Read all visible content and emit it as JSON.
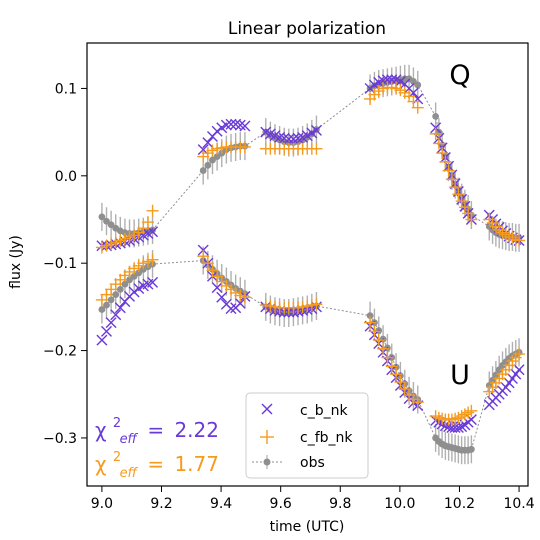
{
  "chart_data": {
    "type": "scatter",
    "title": "Linear polarization",
    "xlabel": "time (UTC)",
    "ylabel": "flux (Jy)",
    "xlim": [
      8.95,
      10.43
    ],
    "ylim": [
      -0.355,
      0.152
    ],
    "x_ticks": [
      "9.0",
      "9.2",
      "9.4",
      "9.6",
      "9.8",
      "10.0",
      "10.2",
      "10.4"
    ],
    "y_ticks": [
      "0.1",
      "0.0",
      "−0.1",
      "−0.2",
      "−0.3"
    ],
    "x_tick_values": [
      9.0,
      9.2,
      9.4,
      9.6,
      9.8,
      10.0,
      10.2,
      10.4
    ],
    "y_tick_values": [
      0.1,
      0.0,
      -0.1,
      -0.2,
      -0.3
    ],
    "grid": false,
    "legend": {
      "position": "bottom-center",
      "entries": [
        "c_b_nk",
        "c_fb_nk",
        "obs"
      ]
    },
    "annotations": {
      "Q_label": "Q",
      "U_label": "U",
      "chi_purple": "2.22",
      "chi_orange": "1.77",
      "chi_symbol": "χ",
      "chi_sup": "2",
      "chi_sub": "eff",
      "chi_eq": "="
    },
    "colors": {
      "c_b_nk": "#6a3ad6",
      "c_fb_nk": "#f59b1e",
      "obs": "#8f8f8f",
      "errorbar": "#b0b0b0"
    },
    "segments": [
      {
        "t_start": 9.0,
        "t_end": 9.17,
        "n": 12
      },
      {
        "t_start": 9.34,
        "t_end": 9.48,
        "n": 10
      },
      {
        "t_start": 9.55,
        "t_end": 9.72,
        "n": 12
      },
      {
        "t_start": 9.9,
        "t_end": 10.06,
        "n": 12
      },
      {
        "t_start": 10.12,
        "t_end": 10.24,
        "n": 12
      },
      {
        "t_start": 10.3,
        "t_end": 10.4,
        "n": 10
      }
    ],
    "series": [
      {
        "name": "obs",
        "label": "Q",
        "values": [
          [
            -0.047,
            -0.052,
            -0.056,
            -0.06,
            -0.063,
            -0.065,
            -0.066,
            -0.066,
            -0.065,
            -0.064,
            -0.063,
            -0.062
          ],
          [
            0.006,
            0.012,
            0.018,
            0.022,
            0.026,
            0.03,
            0.032,
            0.033,
            0.034,
            0.034
          ],
          [
            0.05,
            0.046,
            0.043,
            0.041,
            0.039,
            0.038,
            0.038,
            0.039,
            0.041,
            0.044,
            0.048,
            0.053
          ],
          [
            0.1,
            0.103,
            0.105,
            0.106,
            0.107,
            0.108,
            0.109,
            0.11,
            0.111,
            0.111,
            0.108,
            0.104
          ],
          [
            0.068,
            0.05,
            0.035,
            0.022,
            0.01,
            0.0,
            -0.01,
            -0.018,
            -0.025,
            -0.032,
            -0.038,
            -0.045
          ],
          [
            -0.058,
            -0.062,
            -0.065,
            -0.067,
            -0.068,
            -0.069,
            -0.07,
            -0.07,
            -0.071,
            -0.071
          ]
        ]
      },
      {
        "name": "c_b_nk",
        "label": "Q",
        "values": [
          [
            -0.08,
            -0.08,
            -0.079,
            -0.078,
            -0.077,
            -0.075,
            -0.074,
            -0.072,
            -0.07,
            -0.068,
            -0.066,
            -0.064
          ],
          [
            0.03,
            0.038,
            0.045,
            0.051,
            0.055,
            0.058,
            0.059,
            0.059,
            0.058,
            0.057
          ],
          [
            0.05,
            0.048,
            0.046,
            0.044,
            0.043,
            0.042,
            0.042,
            0.043,
            0.044,
            0.046,
            0.049,
            0.052
          ],
          [
            0.1,
            0.104,
            0.107,
            0.109,
            0.11,
            0.11,
            0.11,
            0.108,
            0.105,
            0.1,
            0.095,
            0.088
          ],
          [
            0.055,
            0.043,
            0.032,
            0.021,
            0.011,
            0.001,
            -0.009,
            -0.018,
            -0.027,
            -0.035,
            -0.043,
            -0.05
          ],
          [
            -0.045,
            -0.05,
            -0.055,
            -0.059,
            -0.063,
            -0.066,
            -0.069,
            -0.071,
            -0.073,
            -0.074
          ]
        ]
      },
      {
        "name": "c_fb_nk",
        "label": "Q",
        "values": [
          [
            -0.082,
            -0.08,
            -0.078,
            -0.076,
            -0.074,
            -0.072,
            -0.07,
            -0.068,
            -0.065,
            -0.06,
            -0.053,
            -0.04
          ],
          [
            0.022,
            0.026,
            0.029,
            0.031,
            0.032,
            0.033,
            0.033,
            0.033,
            0.033,
            0.033
          ],
          [
            0.031,
            0.031,
            0.031,
            0.031,
            0.031,
            0.031,
            0.031,
            0.031,
            0.031,
            0.031,
            0.031,
            0.031
          ],
          [
            0.088,
            0.093,
            0.097,
            0.1,
            0.101,
            0.101,
            0.1,
            0.098,
            0.095,
            0.091,
            0.085,
            0.078
          ],
          [
            0.048,
            0.037,
            0.026,
            0.016,
            0.006,
            -0.004,
            -0.013,
            -0.021,
            -0.029,
            -0.036,
            -0.043,
            -0.05
          ],
          [
            -0.05,
            -0.054,
            -0.058,
            -0.062,
            -0.065,
            -0.067,
            -0.069,
            -0.071,
            -0.073,
            -0.074
          ]
        ]
      },
      {
        "name": "obs",
        "label": "U",
        "values": [
          [
            -0.153,
            -0.148,
            -0.142,
            -0.136,
            -0.13,
            -0.124,
            -0.119,
            -0.115,
            -0.111,
            -0.107,
            -0.104,
            -0.101
          ],
          [
            -0.097,
            -0.102,
            -0.107,
            -0.112,
            -0.117,
            -0.121,
            -0.125,
            -0.129,
            -0.132,
            -0.135
          ],
          [
            -0.15,
            -0.153,
            -0.155,
            -0.156,
            -0.157,
            -0.157,
            -0.156,
            -0.155,
            -0.154,
            -0.153,
            -0.151,
            -0.149
          ],
          [
            -0.16,
            -0.168,
            -0.177,
            -0.187,
            -0.197,
            -0.208,
            -0.219,
            -0.229,
            -0.238,
            -0.246,
            -0.252,
            -0.256
          ],
          [
            -0.3,
            -0.304,
            -0.307,
            -0.309,
            -0.31,
            -0.311,
            -0.312,
            -0.313,
            -0.314,
            -0.314,
            -0.314,
            -0.313
          ],
          [
            -0.24,
            -0.234,
            -0.228,
            -0.222,
            -0.217,
            -0.213,
            -0.209,
            -0.206,
            -0.204,
            -0.202
          ]
        ]
      },
      {
        "name": "c_b_nk",
        "label": "U",
        "values": [
          [
            -0.188,
            -0.178,
            -0.168,
            -0.159,
            -0.151,
            -0.144,
            -0.138,
            -0.133,
            -0.129,
            -0.126,
            -0.124,
            -0.122
          ],
          [
            -0.085,
            -0.1,
            -0.115,
            -0.128,
            -0.139,
            -0.147,
            -0.152,
            -0.151,
            -0.146,
            -0.138
          ],
          [
            -0.15,
            -0.152,
            -0.154,
            -0.155,
            -0.156,
            -0.156,
            -0.156,
            -0.155,
            -0.154,
            -0.153,
            -0.152,
            -0.15
          ],
          [
            -0.172,
            -0.182,
            -0.192,
            -0.202,
            -0.212,
            -0.222,
            -0.231,
            -0.24,
            -0.248,
            -0.255,
            -0.26,
            -0.263
          ],
          [
            -0.28,
            -0.282,
            -0.284,
            -0.286,
            -0.287,
            -0.288,
            -0.288,
            -0.288,
            -0.287,
            -0.285,
            -0.282,
            -0.279
          ],
          [
            -0.262,
            -0.258,
            -0.254,
            -0.25,
            -0.246,
            -0.242,
            -0.237,
            -0.232,
            -0.227,
            -0.222
          ]
        ]
      },
      {
        "name": "c_fb_nk",
        "label": "U",
        "values": [
          [
            -0.142,
            -0.136,
            -0.13,
            -0.124,
            -0.119,
            -0.114,
            -0.11,
            -0.106,
            -0.103,
            -0.1,
            -0.098,
            -0.096
          ],
          [
            -0.092,
            -0.1,
            -0.108,
            -0.115,
            -0.121,
            -0.126,
            -0.13,
            -0.134,
            -0.137,
            -0.139
          ],
          [
            -0.148,
            -0.149,
            -0.15,
            -0.151,
            -0.151,
            -0.151,
            -0.151,
            -0.151,
            -0.15,
            -0.149,
            -0.148,
            -0.147
          ],
          [
            -0.168,
            -0.178,
            -0.188,
            -0.198,
            -0.208,
            -0.218,
            -0.227,
            -0.236,
            -0.244,
            -0.251,
            -0.256,
            -0.259
          ],
          [
            -0.275,
            -0.277,
            -0.278,
            -0.279,
            -0.279,
            -0.279,
            -0.278,
            -0.277,
            -0.275,
            -0.273,
            -0.271,
            -0.269
          ],
          [
            -0.247,
            -0.242,
            -0.237,
            -0.232,
            -0.227,
            -0.222,
            -0.217,
            -0.212,
            -0.208,
            -0.204
          ]
        ]
      }
    ]
  }
}
